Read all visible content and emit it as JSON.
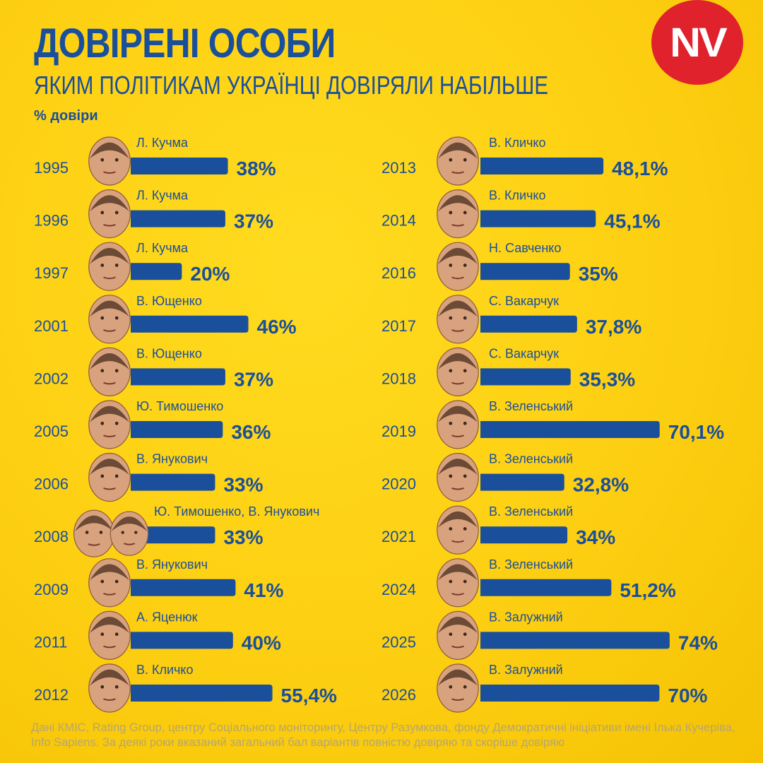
{
  "header": {
    "title": "ДОВІРЕНІ ОСОБИ",
    "subtitle": "ЯКИМ ПОЛІТИКАМ УКРАЇНЦІ ДОВІРЯЛИ НАБІЛЬШЕ",
    "unit_label": "% довіри",
    "logo_text": "NV"
  },
  "colors": {
    "background": "#fdcf12",
    "bar": "#1a4f9c",
    "text": "#1a4f9c",
    "logo": "#e0222c",
    "footnote": "#b8a66a"
  },
  "chart_data": {
    "type": "bar",
    "orientation": "horizontal",
    "title": "ДОВІРЕНІ ОСОБИ",
    "subtitle": "ЯКИМ ПОЛІТИКАМ УКРАЇНЦІ ДОВІРЯЛИ НАБІЛЬШЕ",
    "unit": "% довіри",
    "columns": [
      [
        {
          "year": "1995",
          "name": "Л. Кучма",
          "value": 38,
          "label": "38%"
        },
        {
          "year": "1996",
          "name": "Л. Кучма",
          "value": 37,
          "label": "37%"
        },
        {
          "year": "1997",
          "name": "Л. Кучма",
          "value": 20,
          "label": "20%"
        },
        {
          "year": "2001",
          "name": "В. Ющенко",
          "value": 46,
          "label": "46%"
        },
        {
          "year": "2002",
          "name": "В. Ющенко",
          "value": 37,
          "label": "37%"
        },
        {
          "year": "2005",
          "name": "Ю. Тимошенко",
          "value": 36,
          "label": "36%"
        },
        {
          "year": "2006",
          "name": "В. Янукович",
          "value": 33,
          "label": "33%"
        },
        {
          "year": "2008",
          "name": "Ю. Тимошенко, В. Янукович",
          "value": 33,
          "label": "33%"
        },
        {
          "year": "2009",
          "name": "В. Янукович",
          "value": 41,
          "label": "41%"
        },
        {
          "year": "2011",
          "name": "А. Яценюк",
          "value": 40,
          "label": "40%"
        },
        {
          "year": "2012",
          "name": "В. Кличко",
          "value": 55.4,
          "label": "55,4%"
        }
      ],
      [
        {
          "year": "2013",
          "name": "В. Кличко",
          "value": 48.1,
          "label": "48,1%"
        },
        {
          "year": "2014",
          "name": "В. Кличко",
          "value": 45.1,
          "label": "45,1%"
        },
        {
          "year": "2016",
          "name": "Н. Савченко",
          "value": 35,
          "label": "35%"
        },
        {
          "year": "2017",
          "name": "С. Вакарчук",
          "value": 37.8,
          "label": "37,8%"
        },
        {
          "year": "2018",
          "name": "С. Вакарчук",
          "value": 35.3,
          "label": "35,3%"
        },
        {
          "year": "2019",
          "name": "В. Зеленський",
          "value": 70.1,
          "label": "70,1%"
        },
        {
          "year": "2020",
          "name": "В. Зеленський",
          "value": 32.8,
          "label": "32,8%"
        },
        {
          "year": "2021",
          "name": "В. Зеленський",
          "value": 34,
          "label": "34%"
        },
        {
          "year": "2024",
          "name": "В. Зеленський",
          "value": 51.2,
          "label": "51,2%"
        },
        {
          "year": "2025",
          "name": "В. Залужний",
          "value": 74,
          "label": "74%"
        },
        {
          "year": "2026",
          "name": "В. Залужний",
          "value": 70,
          "label": "70%"
        }
      ]
    ]
  },
  "footnote": "Дані КМІС, Rating Group, центру Соціального моніторингу, Центру Разумкова, фонду Демократичні ініціативи імені Ілька Кучеріва, Info Sapiens. За деякі роки вказаний загальний бал варіантів повністю довіряю та скоріше довіряю"
}
